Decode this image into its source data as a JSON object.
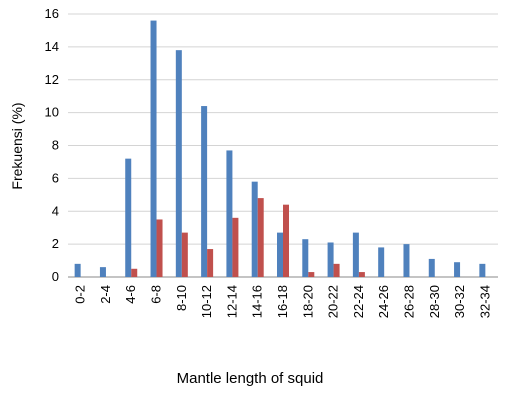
{
  "chart_data": {
    "type": "bar",
    "title": "",
    "xlabel": "Mantle length of squid",
    "ylabel": "Frekuensi (%)",
    "ylim": [
      0,
      16
    ],
    "yticks": [
      0,
      2,
      4,
      6,
      8,
      10,
      12,
      14,
      16
    ],
    "grid": true,
    "legend": "none",
    "categories": [
      "0-2",
      "2-4",
      "4-6",
      "6-8",
      "8-10",
      "10-12",
      "12-14",
      "14-16",
      "16-18",
      "18-20",
      "20-22",
      "22-24",
      "24-26",
      "26-28",
      "28-30",
      "30-32",
      "32-34"
    ],
    "series": [
      {
        "color": "#4f81bd",
        "values": [
          0.8,
          0.6,
          7.2,
          15.6,
          13.8,
          10.4,
          7.7,
          5.8,
          2.7,
          2.3,
          2.1,
          2.7,
          1.8,
          2.0,
          1.1,
          0.9,
          0.8
        ]
      },
      {
        "color": "#c0504d",
        "values": [
          0,
          0,
          0.5,
          3.5,
          2.7,
          1.7,
          3.6,
          4.8,
          4.4,
          0.3,
          0.8,
          0.3,
          0,
          0,
          0,
          0,
          0
        ]
      }
    ]
  }
}
